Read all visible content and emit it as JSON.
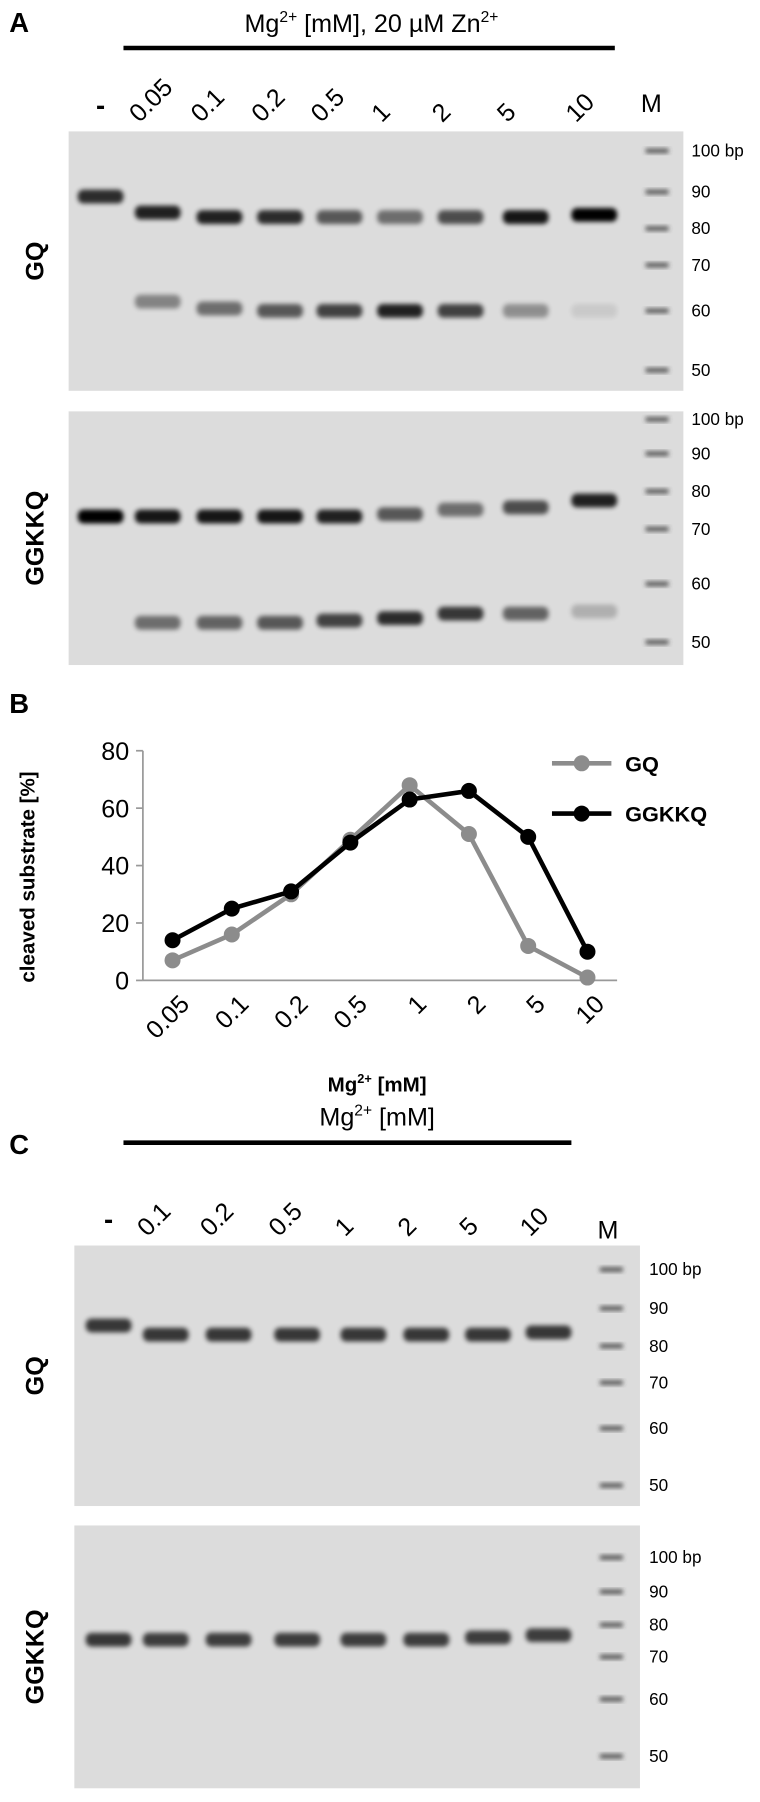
{
  "panel_a": {
    "label": "A",
    "title_parts": [
      "Mg",
      "2+",
      " [mM], 20 µM Zn",
      "2+"
    ],
    "lanes": [
      "-",
      "0.05",
      "0.1",
      "0.2",
      "0.5",
      "1",
      "2",
      "5",
      "10"
    ],
    "marker_lane": "M",
    "gels": [
      {
        "name": "GQ",
        "marker_labels": [
          "100 bp",
          "90",
          "80",
          "70",
          "60",
          "50"
        ]
      },
      {
        "name": "GGKKQ",
        "marker_labels": [
          "100 bp",
          "90",
          "80",
          "70",
          "60",
          "50"
        ]
      }
    ]
  },
  "chart_data": {
    "type": "line",
    "panel_label": "B",
    "y_label": "cleaved substrate [%]",
    "x_label_parts": [
      "Mg",
      "2+",
      " [mM]"
    ],
    "categories": [
      "0.05",
      "0.1",
      "0.2",
      "0.5",
      "1",
      "2",
      "5",
      "10"
    ],
    "series": [
      {
        "name": "GQ",
        "color": "#8c8c8c",
        "values": [
          7,
          16,
          30,
          49,
          68,
          51,
          12,
          1
        ]
      },
      {
        "name": "GGKKQ",
        "color": "#000000",
        "values": [
          14,
          25,
          31,
          48,
          63,
          66,
          50,
          10
        ]
      }
    ],
    "ylim": [
      0,
      80
    ],
    "yticks": [
      0,
      20,
      40,
      60,
      80
    ],
    "legend": "upper right"
  },
  "panel_c": {
    "label": "C",
    "title_parts": [
      "Mg",
      "2+",
      " [mM]"
    ],
    "lanes": [
      "-",
      "0.1",
      "0.2",
      "0.5",
      "1",
      "2",
      "5",
      "10"
    ],
    "marker_lane": "M",
    "gels": [
      {
        "name": "GQ",
        "marker_labels": [
          "100 bp",
          "90",
          "80",
          "70",
          "60",
          "50"
        ]
      },
      {
        "name": "GGKKQ",
        "marker_labels": [
          "100 bp",
          "90",
          "80",
          "70",
          "60",
          "50"
        ]
      }
    ]
  }
}
